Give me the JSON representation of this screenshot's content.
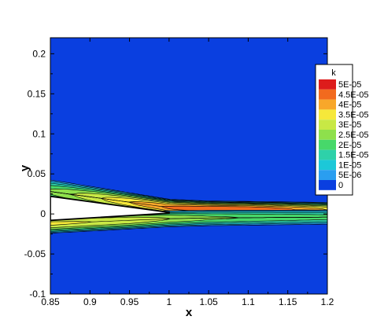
{
  "chart_data": {
    "type": "heatmap",
    "title": "",
    "xlabel": "x",
    "ylabel": "y",
    "xlim": [
      0.85,
      1.2
    ],
    "ylim": [
      -0.1,
      0.22
    ],
    "x_ticks": [
      "0.85",
      "0.9",
      "0.95",
      "1",
      "1.05",
      "1.1",
      "1.15",
      "1.2"
    ],
    "x_tick_values": [
      0.85,
      0.9,
      0.95,
      1.0,
      1.05,
      1.1,
      1.15,
      1.2
    ],
    "y_ticks": [
      "-0.1",
      "-0.05",
      "0",
      "0.05",
      "0.1",
      "0.15",
      "0.2"
    ],
    "y_tick_values": [
      -0.1,
      -0.05,
      0,
      0.05,
      0.1,
      0.15,
      0.2
    ],
    "grid": false,
    "background_value": 0,
    "legend": {
      "title": "k",
      "placement": "right",
      "levels": [
        {
          "label": "5E-05",
          "value": 5e-05,
          "color": "#dd1c1c"
        },
        {
          "label": "4.5E-05",
          "value": 4.5e-05,
          "color": "#f26a1e"
        },
        {
          "label": "4E-05",
          "value": 4e-05,
          "color": "#f8a72a"
        },
        {
          "label": "3.5E-05",
          "value": 3.5e-05,
          "color": "#f6e83a"
        },
        {
          "label": "3E-05",
          "value": 3e-05,
          "color": "#c8e845"
        },
        {
          "label": "2.5E-05",
          "value": 2.5e-05,
          "color": "#8ee04c"
        },
        {
          "label": "2E-05",
          "value": 2e-05,
          "color": "#47d86a"
        },
        {
          "label": "1.5E-05",
          "value": 1.5e-05,
          "color": "#2ed1a9"
        },
        {
          "label": "1E-05",
          "value": 1e-05,
          "color": "#1cc8d8"
        },
        {
          "label": "5E-06",
          "value": 5e-06,
          "color": "#2a9ef0"
        },
        {
          "label": "0",
          "value": 0,
          "color": "#0a3fe0"
        }
      ]
    },
    "body_geometry": {
      "upper_surface": [
        [
          0.85,
          0.022
        ],
        [
          1.0,
          0.002
        ]
      ],
      "lower_surface": [
        [
          0.85,
          -0.008
        ],
        [
          1.0,
          0.001
        ]
      ]
    },
    "wake_fields": [
      {
        "name": "upper",
        "x0": 0.85,
        "x1": 1.2,
        "center_y_at": [
          [
            0.85,
            0.028
          ],
          [
            1.0,
            0.008
          ],
          [
            1.05,
            0.006
          ],
          [
            1.2,
            0.005
          ]
        ],
        "half_width_at": [
          [
            0.85,
            0.016
          ],
          [
            1.0,
            0.011
          ],
          [
            1.2,
            0.01
          ]
        ],
        "peak_at": [
          [
            0.85,
            2.6e-05
          ],
          [
            0.95,
            4e-05
          ],
          [
            1.0,
            4.6e-05
          ],
          [
            1.05,
            5e-05
          ],
          [
            1.1,
            5e-05
          ],
          [
            1.15,
            4.6e-05
          ],
          [
            1.2,
            4e-05
          ]
        ]
      },
      {
        "name": "lower",
        "x0": 0.85,
        "x1": 1.2,
        "center_y_at": [
          [
            0.85,
            -0.012
          ],
          [
            1.0,
            -0.006
          ],
          [
            1.05,
            -0.005
          ],
          [
            1.2,
            -0.004
          ]
        ],
        "half_width_at": [
          [
            0.85,
            0.013
          ],
          [
            1.0,
            0.011
          ],
          [
            1.2,
            0.01
          ]
        ],
        "peak_at": [
          [
            0.85,
            3.6e-05
          ],
          [
            0.95,
            3.4e-05
          ],
          [
            1.0,
            3e-05
          ],
          [
            1.05,
            2.6e-05
          ],
          [
            1.2,
            2.2e-05
          ]
        ]
      }
    ]
  }
}
